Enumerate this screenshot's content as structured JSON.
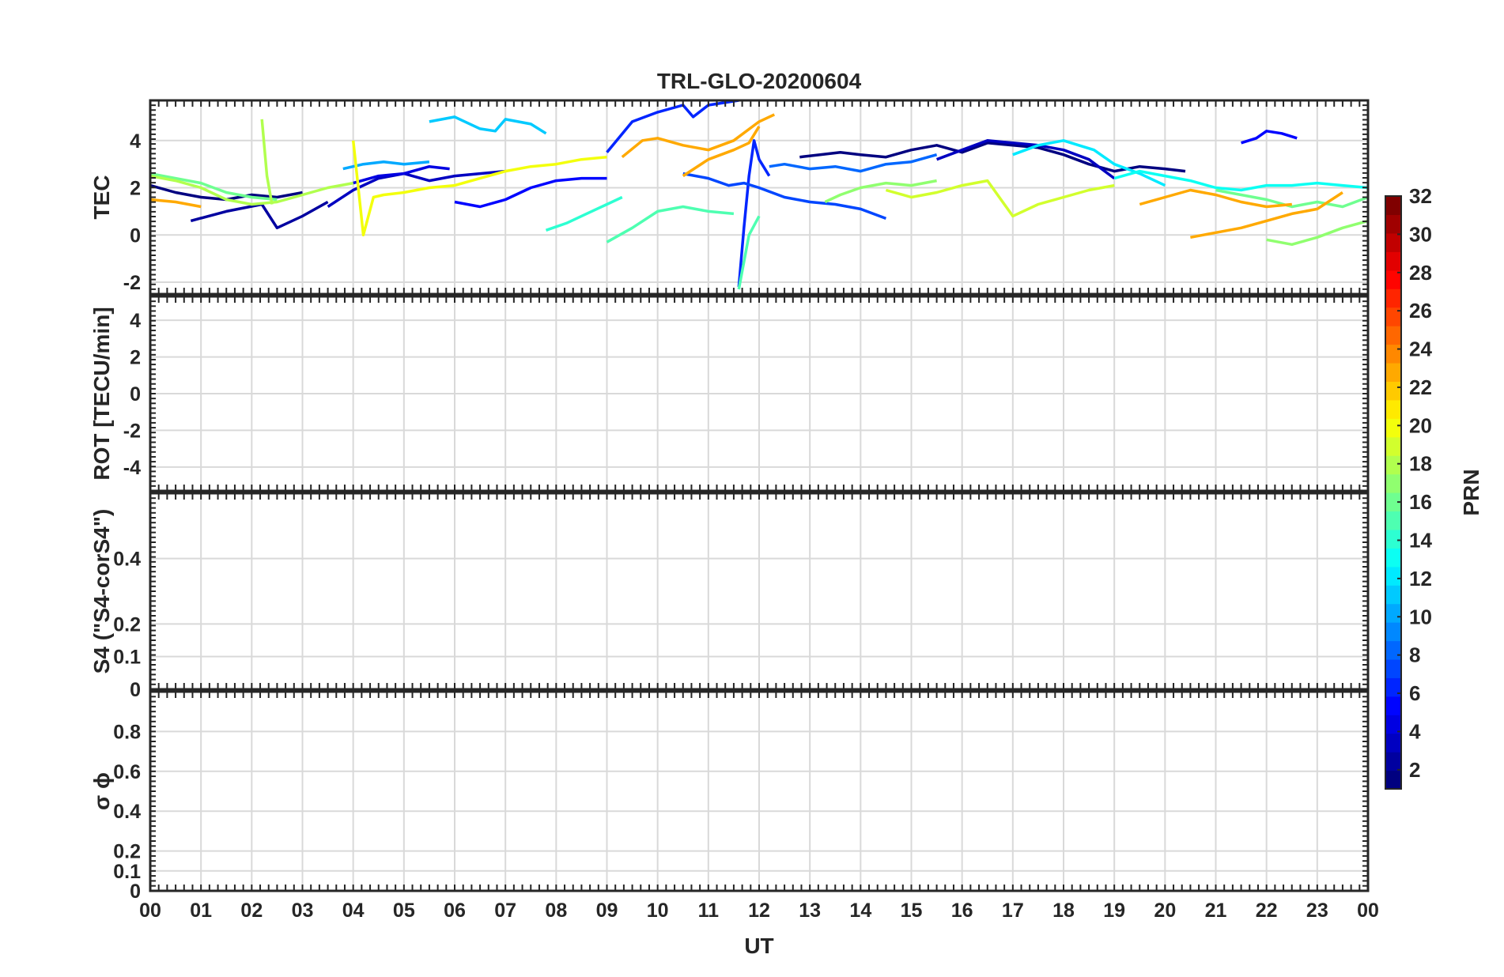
{
  "chart_data": {
    "type": "line",
    "title": "TRL-GLO-20200604",
    "xlabel": "UT",
    "x_ticks": [
      "00",
      "01",
      "02",
      "03",
      "04",
      "05",
      "06",
      "07",
      "08",
      "09",
      "10",
      "11",
      "12",
      "13",
      "14",
      "15",
      "16",
      "17",
      "18",
      "19",
      "20",
      "21",
      "22",
      "23",
      "00"
    ],
    "xlim": [
      0,
      24
    ],
    "grid": true,
    "panels": [
      {
        "name": "tec",
        "ylabel": "TEC",
        "ylim": [
          -2.5,
          5.7
        ],
        "yticks": [
          -2,
          0,
          2,
          4
        ],
        "ytick_labels": [
          "-2",
          "0",
          "2",
          "4"
        ],
        "series": [
          {
            "prn": 1,
            "x": [
              0.0,
              0.5,
              1.0,
              1.5,
              2.0,
              2.5,
              3.0
            ],
            "y": [
              2.1,
              1.8,
              1.6,
              1.5,
              1.7,
              1.6,
              1.8
            ]
          },
          {
            "prn": 2,
            "x": [
              0.8,
              1.5,
              2.2,
              2.5,
              3.0,
              3.5
            ],
            "y": [
              0.6,
              1.0,
              1.3,
              0.3,
              0.8,
              1.4
            ]
          },
          {
            "prn": 3,
            "x": [
              3.5,
              4.0,
              4.5,
              5.0,
              5.5,
              6.0,
              6.5,
              7.0
            ],
            "y": [
              1.2,
              1.9,
              2.4,
              2.6,
              2.3,
              2.5,
              2.6,
              2.7
            ]
          },
          {
            "prn": 4,
            "x": [
              4.0,
              4.5,
              5.0,
              5.5,
              5.9
            ],
            "y": [
              2.2,
              2.5,
              2.6,
              2.9,
              2.8
            ]
          },
          {
            "prn": 5,
            "x": [
              6.0,
              6.5,
              7.0,
              7.5,
              8.0,
              8.5,
              9.0
            ],
            "y": [
              1.4,
              1.2,
              1.5,
              2.0,
              2.3,
              2.4,
              2.4
            ]
          },
          {
            "prn": 1,
            "x": [
              12.8,
              13.2,
              13.6,
              14.0,
              14.5,
              15.0,
              15.5,
              16.0,
              16.5,
              17.0,
              17.5,
              18.0,
              18.5,
              19.0,
              19.5,
              20.0,
              20.4
            ],
            "y": [
              3.3,
              3.4,
              3.5,
              3.4,
              3.3,
              3.6,
              3.8,
              3.5,
              3.9,
              3.8,
              3.7,
              3.4,
              3.0,
              2.7,
              2.9,
              2.8,
              2.7
            ]
          },
          {
            "prn": 3,
            "x": [
              15.5,
              16.0,
              16.5,
              17.0,
              17.5,
              18.0,
              18.5,
              19.0
            ],
            "y": [
              3.2,
              3.6,
              4.0,
              3.9,
              3.8,
              3.6,
              3.2,
              2.4
            ]
          },
          {
            "prn": 6,
            "x": [
              9.0,
              9.5,
              10.0,
              10.5,
              10.7,
              11.0,
              11.3,
              11.6
            ],
            "y": [
              3.5,
              4.8,
              5.2,
              5.5,
              5.0,
              5.5,
              5.6,
              5.7
            ]
          },
          {
            "prn": 6,
            "x": [
              11.6,
              11.7,
              11.8,
              11.9,
              12.0,
              12.2
            ],
            "y": [
              -2.2,
              0.3,
              2.5,
              4.0,
              3.2,
              2.5
            ]
          },
          {
            "prn": 7,
            "x": [
              10.5,
              11.0,
              11.4,
              11.7,
              12.0,
              12.5,
              13.0,
              13.5,
              14.0,
              14.5
            ],
            "y": [
              2.6,
              2.4,
              2.1,
              2.2,
              2.0,
              1.6,
              1.4,
              1.3,
              1.1,
              0.7
            ]
          },
          {
            "prn": 8,
            "x": [
              12.2,
              12.5,
              13.0,
              13.5,
              14.0,
              14.5,
              15.0,
              15.5
            ],
            "y": [
              2.9,
              3.0,
              2.8,
              2.9,
              2.7,
              3.0,
              3.1,
              3.4
            ]
          },
          {
            "prn": 5,
            "x": [
              21.5,
              21.8,
              22.0,
              22.3,
              22.6
            ],
            "y": [
              3.9,
              4.1,
              4.4,
              4.3,
              4.1
            ]
          },
          {
            "prn": 10,
            "x": [
              3.8,
              4.2,
              4.6,
              5.0,
              5.5
            ],
            "y": [
              2.8,
              3.0,
              3.1,
              3.0,
              3.1
            ]
          },
          {
            "prn": 11,
            "x": [
              5.5,
              6.0,
              6.5,
              6.8,
              7.0,
              7.5,
              7.8
            ],
            "y": [
              4.8,
              5.0,
              4.5,
              4.4,
              4.9,
              4.7,
              4.3
            ]
          },
          {
            "prn": 12,
            "x": [
              17.0,
              17.5,
              18.0,
              18.3,
              18.6,
              19.0,
              19.5,
              20.0
            ],
            "y": [
              3.4,
              3.8,
              4.0,
              3.8,
              3.6,
              3.0,
              2.6,
              2.1
            ]
          },
          {
            "prn": 13,
            "x": [
              19.0,
              19.5,
              20.0,
              20.5,
              21.0,
              21.5,
              22.0,
              22.5,
              23.0,
              23.5,
              24.0
            ],
            "y": [
              2.4,
              2.7,
              2.5,
              2.3,
              2.0,
              1.9,
              2.1,
              2.1,
              2.2,
              2.1,
              2.0
            ]
          },
          {
            "prn": 14,
            "x": [
              7.8,
              8.2,
              8.6,
              9.0,
              9.3
            ],
            "y": [
              0.2,
              0.5,
              0.9,
              1.3,
              1.6
            ]
          },
          {
            "prn": 15,
            "x": [
              9.0,
              9.5,
              10.0,
              10.5,
              11.0,
              11.5
            ],
            "y": [
              -0.3,
              0.3,
              1.0,
              1.2,
              1.0,
              0.9
            ]
          },
          {
            "prn": 15,
            "x": [
              11.6,
              11.8,
              12.0
            ],
            "y": [
              -2.3,
              0.0,
              0.8
            ]
          },
          {
            "prn": 16,
            "x": [
              0.0,
              0.5,
              1.0,
              1.5,
              2.0,
              2.5
            ],
            "y": [
              2.6,
              2.4,
              2.2,
              1.8,
              1.6,
              1.5
            ]
          },
          {
            "prn": 16,
            "x": [
              21.0,
              21.5,
              22.0,
              22.5,
              23.0,
              23.5,
              24.0
            ],
            "y": [
              1.9,
              1.7,
              1.5,
              1.2,
              1.4,
              1.2,
              1.6
            ]
          },
          {
            "prn": 17,
            "x": [
              13.3,
              13.6,
              14.0,
              14.5,
              15.0,
              15.5
            ],
            "y": [
              1.4,
              1.7,
              2.0,
              2.2,
              2.1,
              2.3
            ]
          },
          {
            "prn": 17,
            "x": [
              22.0,
              22.5,
              23.0,
              23.5,
              24.0
            ],
            "y": [
              -0.2,
              -0.4,
              -0.1,
              0.3,
              0.6
            ]
          },
          {
            "prn": 18,
            "x": [
              2.2,
              2.3,
              2.4
            ],
            "y": [
              4.9,
              2.5,
              1.3
            ]
          },
          {
            "prn": 18,
            "x": [
              0.0,
              0.5,
              1.0,
              1.5,
              2.0,
              2.5,
              3.0,
              3.5,
              4.0
            ],
            "y": [
              2.5,
              2.3,
              2.0,
              1.5,
              1.3,
              1.4,
              1.7,
              2.0,
              2.2
            ]
          },
          {
            "prn": 19,
            "x": [
              14.5,
              15.0,
              15.5,
              16.0,
              16.5,
              17.0,
              17.5,
              18.0,
              18.5,
              19.0
            ],
            "y": [
              1.9,
              1.6,
              1.8,
              2.1,
              2.3,
              0.8,
              1.3,
              1.6,
              1.9,
              2.1
            ]
          },
          {
            "prn": 20,
            "x": [
              4.0,
              4.2,
              4.4,
              4.6,
              5.0,
              5.5,
              6.0,
              6.5,
              7.0,
              7.5,
              8.0,
              8.5,
              9.0
            ],
            "y": [
              4.0,
              0.0,
              1.6,
              1.7,
              1.8,
              2.0,
              2.1,
              2.4,
              2.7,
              2.9,
              3.0,
              3.2,
              3.3
            ]
          },
          {
            "prn": 23,
            "x": [
              0.0,
              0.5,
              1.0
            ],
            "y": [
              1.5,
              1.4,
              1.2
            ]
          },
          {
            "prn": 23,
            "x": [
              9.3,
              9.7,
              10.0,
              10.5,
              11.0,
              11.5,
              12.0,
              12.3
            ],
            "y": [
              3.3,
              4.0,
              4.1,
              3.8,
              3.6,
              4.0,
              4.8,
              5.1
            ]
          },
          {
            "prn": 23,
            "x": [
              10.5,
              11.0,
              11.5,
              11.8,
              12.0
            ],
            "y": [
              2.5,
              3.2,
              3.6,
              3.9,
              4.6
            ]
          },
          {
            "prn": 23,
            "x": [
              19.5,
              20.0,
              20.5,
              21.0,
              21.5,
              22.0,
              22.5
            ],
            "y": [
              1.3,
              1.6,
              1.9,
              1.7,
              1.4,
              1.2,
              1.3
            ]
          },
          {
            "prn": 23,
            "x": [
              20.5,
              21.0,
              21.5,
              22.0,
              22.5,
              23.0,
              23.5
            ],
            "y": [
              -0.1,
              0.1,
              0.3,
              0.6,
              0.9,
              1.1,
              1.8
            ]
          }
        ]
      },
      {
        "name": "rot",
        "ylabel": "ROT [TECU/min]",
        "ylim": [
          -5.3,
          5.3
        ],
        "yticks": [
          -4,
          -2,
          0,
          2,
          4
        ],
        "ytick_labels": [
          "-4",
          "-2",
          "0",
          "2",
          "4"
        ]
      },
      {
        "name": "s4",
        "ylabel": "S4 (\"S4-corS4\")",
        "ylim": [
          0,
          0.6
        ],
        "yticks": [
          0,
          0.1,
          0.2,
          0.4
        ],
        "ytick_labels": [
          "0",
          "0.1",
          "0.2",
          "0.4"
        ]
      },
      {
        "name": "sigma_phi",
        "ylabel": "σ ϕ",
        "ylim": [
          0,
          1.0
        ],
        "yticks": [
          0,
          0.1,
          0.2,
          0.4,
          0.6,
          0.8
        ],
        "ytick_labels": [
          "0",
          "0.1",
          "0.2",
          "0.4",
          "0.6",
          "0.8"
        ]
      }
    ],
    "colorbar": {
      "label": "PRN",
      "range": [
        1,
        32
      ],
      "ticks": [
        2,
        4,
        6,
        8,
        10,
        12,
        14,
        16,
        18,
        20,
        22,
        24,
        26,
        28,
        30,
        32
      ],
      "tick_labels": [
        "2",
        "4",
        "6",
        "8",
        "10",
        "12",
        "14",
        "16",
        "18",
        "20",
        "22",
        "24",
        "26",
        "28",
        "30",
        "32"
      ],
      "colormap": "jet"
    }
  }
}
